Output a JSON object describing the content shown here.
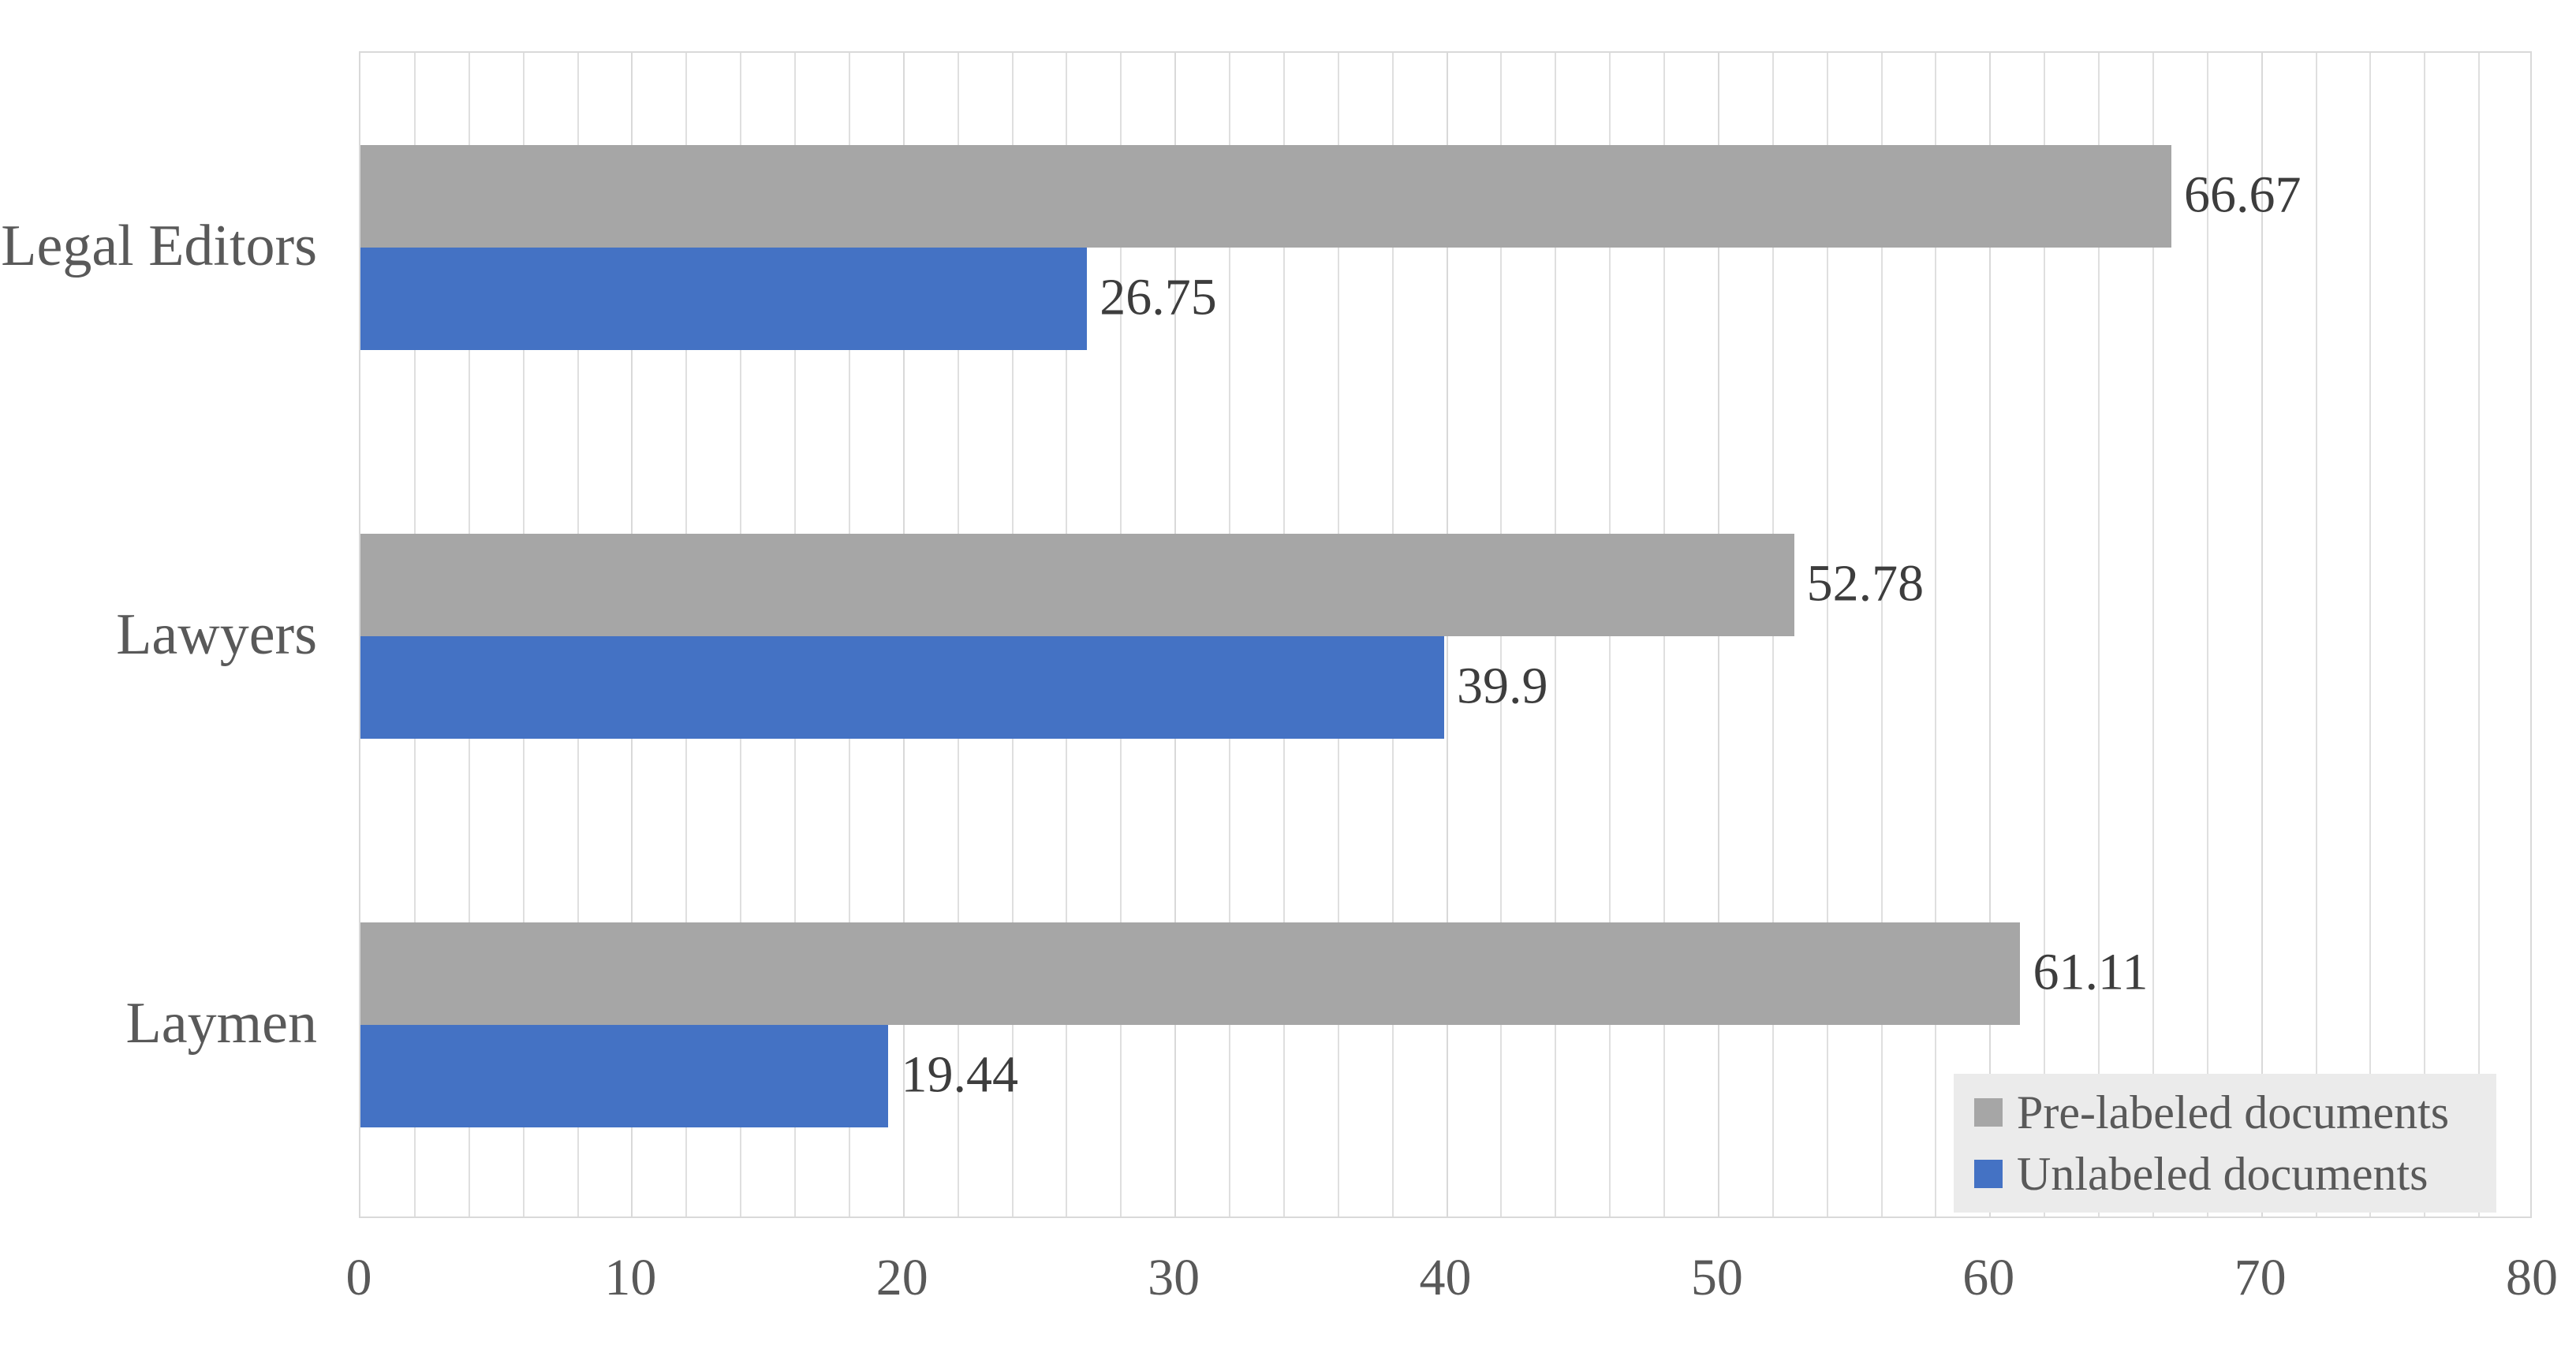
{
  "chart_data": {
    "type": "bar",
    "orientation": "horizontal",
    "title": "",
    "xlabel": "",
    "ylabel": "",
    "categories": [
      "Legal Editors",
      "Lawyers",
      "Laymen"
    ],
    "series": [
      {
        "name": "Pre-labeled documents",
        "color": "#a6a6a6",
        "values": [
          66.67,
          52.78,
          61.11
        ],
        "value_labels": [
          "66.67",
          "52.78",
          "61.11"
        ]
      },
      {
        "name": "Unlabeled documents",
        "color": "#4472c4",
        "values": [
          26.75,
          39.9,
          19.44
        ],
        "value_labels": [
          "26.75",
          "39.9",
          "19.44"
        ]
      }
    ],
    "xlim": [
      0,
      80
    ],
    "x_ticks": [
      "0",
      "10",
      "20",
      "30",
      "40",
      "50",
      "60",
      "70",
      "80"
    ],
    "x_major_unit": 10,
    "x_minor_unit": 2,
    "grid": true,
    "legend_position": "bottom-right"
  },
  "colors": {
    "background": "#ffffff",
    "plot_border": "#d9d9d9",
    "grid_minor": "#dfdfdf",
    "grid_major": "#d9d9d9",
    "axis_text": "#595959",
    "data_label_text": "#3d3d3d",
    "legend_background": "#ebebeb",
    "legend_text": "#595959"
  }
}
